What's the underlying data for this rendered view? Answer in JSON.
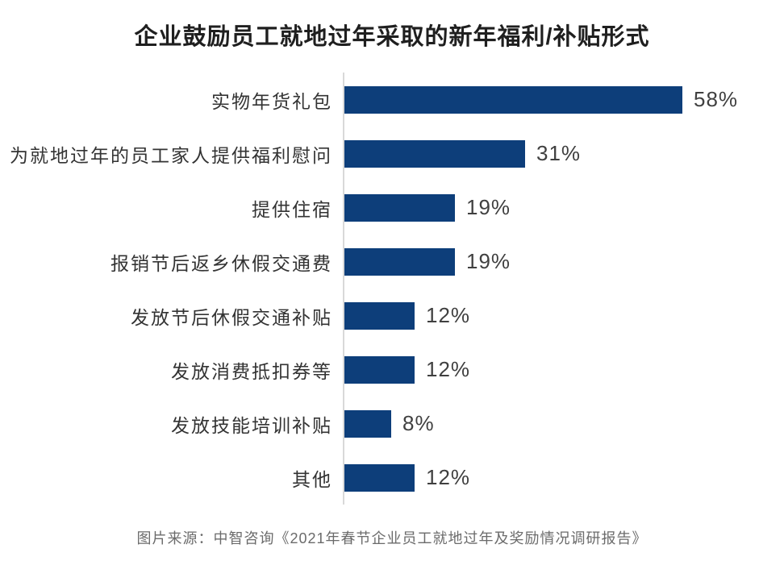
{
  "title": "企业鼓励员工就地过年采取的新年福利/补贴形式",
  "source_caption": "图片来源：中智咨询《2021年春节企业员工就地过年及奖励情况调研报告》",
  "colors": {
    "bar": "#0d3e7a",
    "axis_line": "#d9d9d9",
    "title_text": "#1f1f1f",
    "label_text": "#333333",
    "value_text": "#404040",
    "source_text": "#6b6b6b",
    "background": "#ffffff"
  },
  "chart_data": {
    "type": "bar",
    "orientation": "horizontal",
    "title": "企业鼓励员工就地过年采取的新年福利/补贴形式",
    "categories": [
      "实物年货礼包",
      "为就地过年的员工家人提供福利慰问",
      "提供住宿",
      "报销节后返乡休假交通费",
      "发放节后休假交通补贴",
      "发放消费抵扣券等",
      "发放技能培训补贴",
      "其他"
    ],
    "values": [
      58,
      31,
      19,
      19,
      12,
      12,
      8,
      12
    ],
    "value_labels": [
      "58%",
      "31%",
      "19%",
      "19%",
      "12%",
      "12%",
      "8%",
      "12%"
    ],
    "unit": "%",
    "xlim": [
      0,
      60
    ],
    "grid": false,
    "legend": false,
    "annotation_note": "values shown as data labels at end of each bar"
  }
}
